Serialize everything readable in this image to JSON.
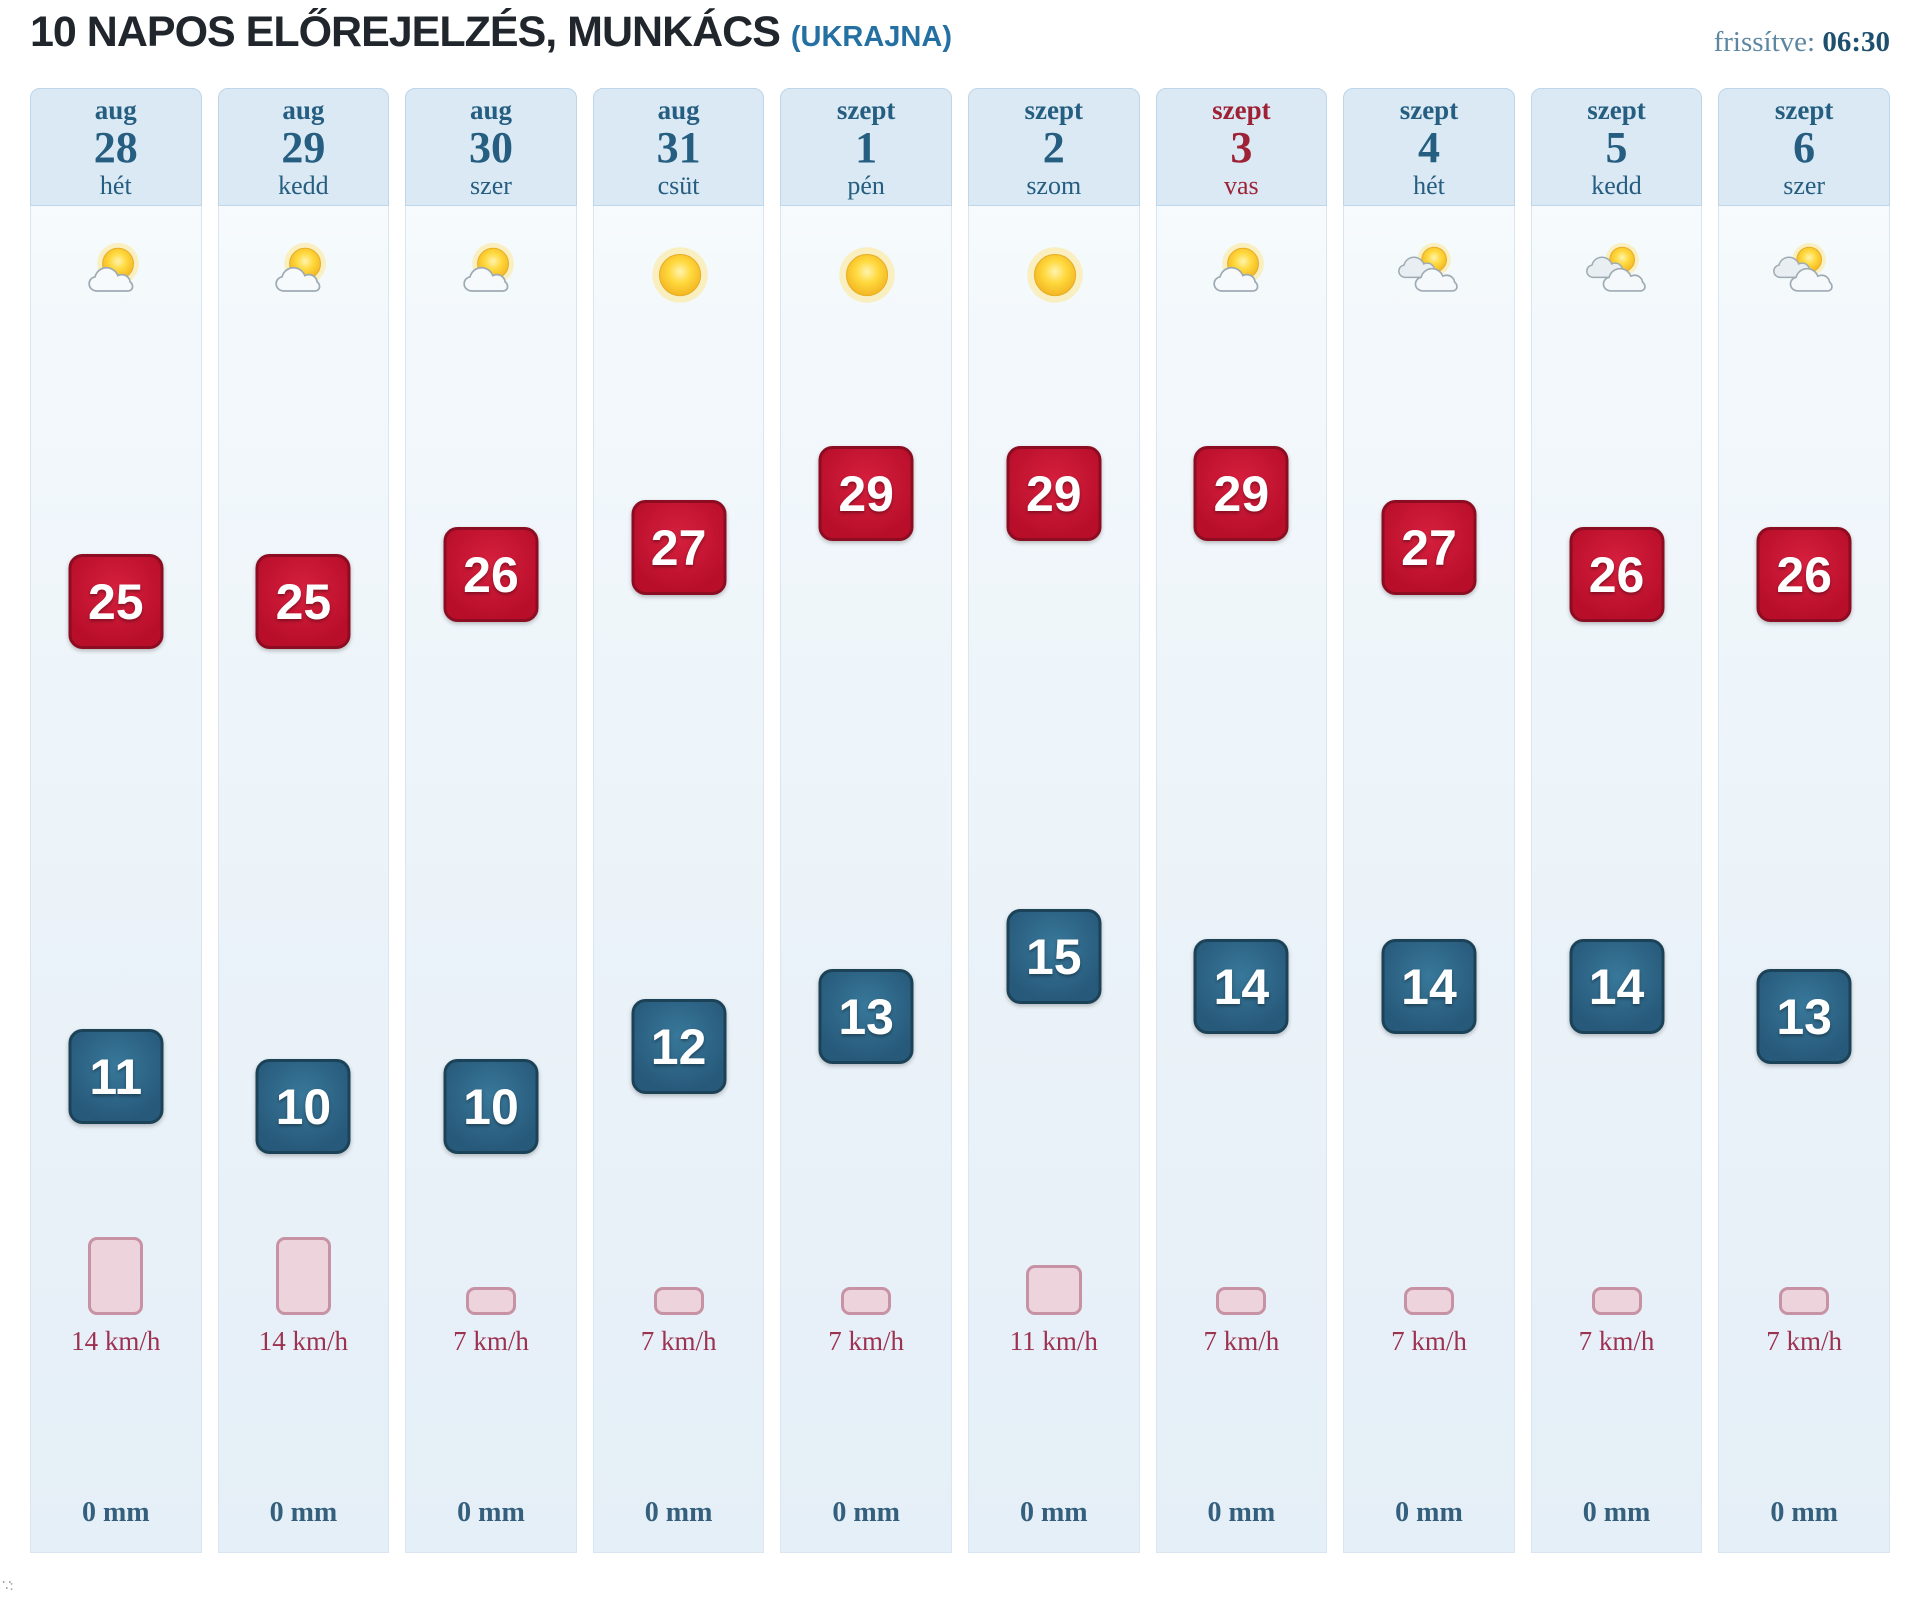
{
  "header": {
    "title": "10 NAPOS ELŐREJELZÉS, MUNKÁCS",
    "subtitle": "(UKRAJNA)",
    "updated_label": "frissítve:",
    "updated_time": "06:30"
  },
  "colors": {
    "high_badge": "#b80e2a",
    "high_badge_light": "#d6203e",
    "low_badge": "#27597a",
    "low_badge_light": "#38789a",
    "header_text": "#255e80",
    "highlight_text": "#9e2236"
  },
  "units": {
    "wind": "km/h",
    "precipitation": "mm"
  },
  "days": [
    {
      "month": "aug",
      "day": "28",
      "weekday": "hét",
      "highlight": false,
      "icon": "partly-sunny",
      "high": 25,
      "low": 11,
      "wind_kmh": 14,
      "wind_label": "14 km/h",
      "precip_label": "0 mm"
    },
    {
      "month": "aug",
      "day": "29",
      "weekday": "kedd",
      "highlight": false,
      "icon": "partly-sunny",
      "high": 25,
      "low": 10,
      "wind_kmh": 14,
      "wind_label": "14 km/h",
      "precip_label": "0 mm"
    },
    {
      "month": "aug",
      "day": "30",
      "weekday": "szer",
      "highlight": false,
      "icon": "partly-sunny",
      "high": 26,
      "low": 10,
      "wind_kmh": 7,
      "wind_label": "7 km/h",
      "precip_label": "0 mm"
    },
    {
      "month": "aug",
      "day": "31",
      "weekday": "csüt",
      "highlight": false,
      "icon": "sunny",
      "high": 27,
      "low": 12,
      "wind_kmh": 7,
      "wind_label": "7 km/h",
      "precip_label": "0 mm"
    },
    {
      "month": "szept",
      "day": "1",
      "weekday": "pén",
      "highlight": false,
      "icon": "sunny",
      "high": 29,
      "low": 13,
      "wind_kmh": 7,
      "wind_label": "7 km/h",
      "precip_label": "0 mm"
    },
    {
      "month": "szept",
      "day": "2",
      "weekday": "szom",
      "highlight": false,
      "icon": "sunny",
      "high": 29,
      "low": 15,
      "wind_kmh": 11,
      "wind_label": "11 km/h",
      "precip_label": "0 mm"
    },
    {
      "month": "szept",
      "day": "3",
      "weekday": "vas",
      "highlight": true,
      "icon": "partly-sunny",
      "high": 29,
      "low": 14,
      "wind_kmh": 7,
      "wind_label": "7 km/h",
      "precip_label": "0 mm"
    },
    {
      "month": "szept",
      "day": "4",
      "weekday": "hét",
      "highlight": false,
      "icon": "mostly-cloudy",
      "high": 27,
      "low": 14,
      "wind_kmh": 7,
      "wind_label": "7 km/h",
      "precip_label": "0 mm"
    },
    {
      "month": "szept",
      "day": "5",
      "weekday": "kedd",
      "highlight": false,
      "icon": "mostly-cloudy",
      "high": 26,
      "low": 14,
      "wind_kmh": 7,
      "wind_label": "7 km/h",
      "precip_label": "0 mm"
    },
    {
      "month": "szept",
      "day": "6",
      "weekday": "szer",
      "highlight": false,
      "icon": "mostly-cloudy",
      "high": 26,
      "low": 13,
      "wind_kmh": 7,
      "wind_label": "7 km/h",
      "precip_label": "0 mm"
    }
  ]
}
